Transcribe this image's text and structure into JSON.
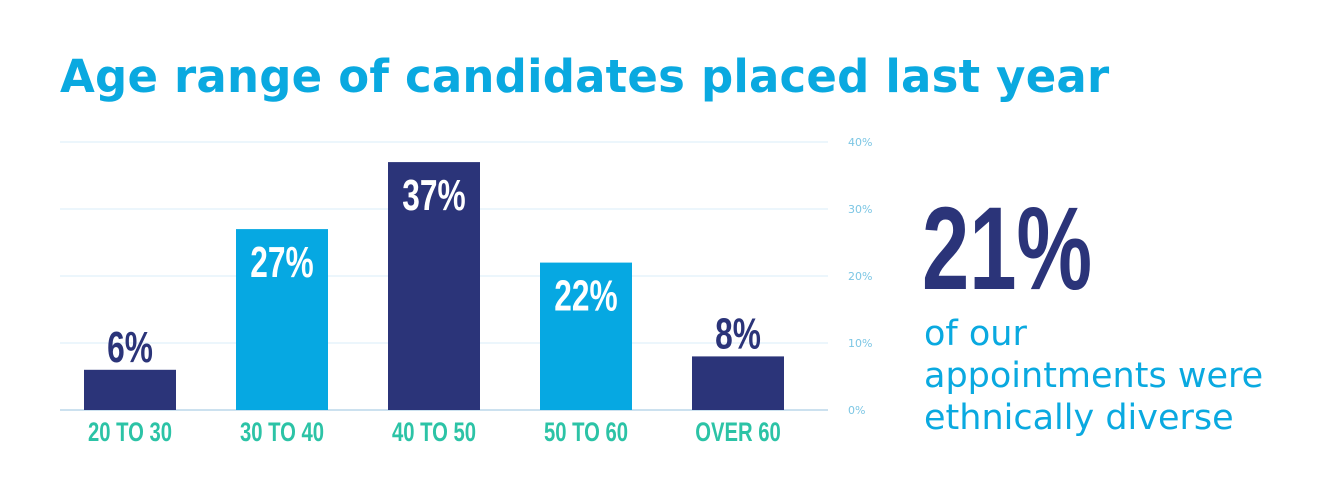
{
  "colors": {
    "title": "#0aa9e0",
    "dark_bar": "#2b3479",
    "light_bar": "#06a8e2",
    "category_label": "#2cc3a6",
    "grid": "#d9eef8",
    "axis_tick": "#7cc6e4",
    "baseline": "#bcd7ea",
    "stat_number": "#2b3479",
    "stat_text": "#0aa9e0"
  },
  "chart_data": {
    "type": "bar",
    "title": "Age range of candidates placed last year",
    "categories": [
      "20 TO 30",
      "30 TO 40",
      "40 TO 50",
      "50 TO 60",
      "OVER 60"
    ],
    "values": [
      6,
      27,
      37,
      22,
      8
    ],
    "data_labels": [
      "6%",
      "27%",
      "37%",
      "22%",
      "8%"
    ],
    "bar_colors": [
      "dark",
      "light",
      "dark",
      "light",
      "dark"
    ],
    "ylim": [
      0,
      40
    ],
    "y_ticks": [
      0,
      10,
      20,
      30,
      40
    ],
    "y_tick_labels": [
      "0%",
      "10%",
      "20%",
      "30%",
      "40%"
    ],
    "y_axis_position": "right",
    "grid": true,
    "xlabel": "",
    "ylabel": ""
  },
  "stat": {
    "value": "21%",
    "lines": [
      "of our",
      "appointments were",
      "ethnically diverse"
    ]
  }
}
